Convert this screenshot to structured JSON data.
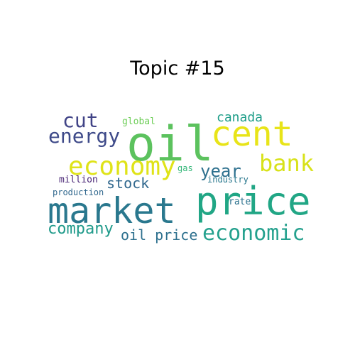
{
  "title": "Topic #15",
  "words": [
    {
      "text": "oil",
      "color": "#5cc25e"
    },
    {
      "text": "cent",
      "color": "#e8e419"
    },
    {
      "text": "market",
      "color": "#2a788e"
    },
    {
      "text": "price",
      "color": "#21a685"
    },
    {
      "text": "economy",
      "color": "#dfe318"
    },
    {
      "text": "bank",
      "color": "#d8e219"
    },
    {
      "text": "economic",
      "color": "#25a18e"
    },
    {
      "text": "energy",
      "color": "#3e4a89"
    },
    {
      "text": "cut",
      "color": "#414487"
    },
    {
      "text": "year",
      "color": "#2d708e"
    },
    {
      "text": "company",
      "color": "#1f9a8a"
    },
    {
      "text": "oil price",
      "color": "#2d708e"
    },
    {
      "text": "stock",
      "color": "#31688e"
    },
    {
      "text": "canada",
      "color": "#1f9e89"
    },
    {
      "text": "global",
      "color": "#6ece58"
    },
    {
      "text": "gas",
      "color": "#35b779"
    },
    {
      "text": "industry",
      "color": "#2a788e"
    },
    {
      "text": "million",
      "color": "#482475"
    },
    {
      "text": "production",
      "color": "#31688e"
    },
    {
      "text": "rate",
      "color": "#2c728e"
    }
  ]
}
